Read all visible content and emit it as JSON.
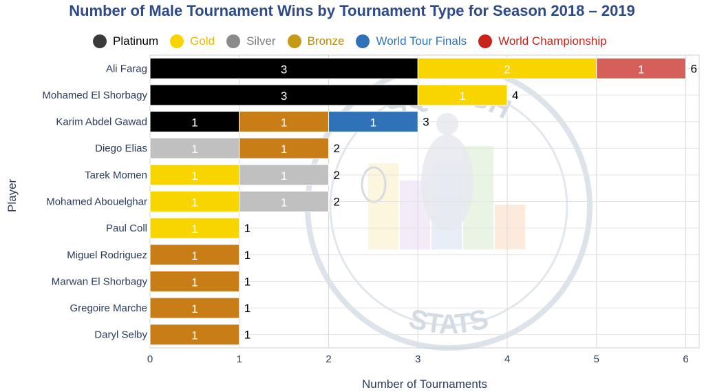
{
  "chart_data": {
    "type": "bar",
    "orientation": "horizontal",
    "stacked": true,
    "title": "Number of Male Tournament Wins by Tournament Type for Season 2018 – 2019",
    "xlabel": "Number of Tournaments",
    "ylabel": "Player",
    "xlim": [
      0,
      6.15
    ],
    "xticks": [
      0,
      1,
      2,
      3,
      4,
      5,
      6
    ],
    "grid": true,
    "legend_position": "top",
    "categories": [
      "Ali Farag",
      "Mohamed El Shorbagy",
      "Karim Abdel Gawad",
      "Diego Elias",
      "Tarek Momen",
      "Mohamed Abouelghar",
      "Paul Coll",
      "Miguel Rodriguez",
      "Marwan El Shorbagy",
      "Gregoire Marche",
      "Daryl Selby"
    ],
    "series": [
      {
        "name": "Platinum",
        "color": "#000000",
        "legend_color": "#3a3a3a",
        "text_color": "#000000",
        "values": [
          3,
          3,
          1,
          0,
          0,
          0,
          0,
          0,
          0,
          0,
          0
        ]
      },
      {
        "name": "Gold",
        "color": "#f9d500",
        "legend_color": "#f9d500",
        "text_color": "#e8b800",
        "values": [
          2,
          1,
          0,
          0,
          1,
          1,
          1,
          0,
          0,
          0,
          0
        ]
      },
      {
        "name": "Silver",
        "color": "#c0c0c0",
        "legend_color": "#8a8a8a",
        "text_color": "#7a7a7a",
        "values": [
          0,
          0,
          0,
          1,
          1,
          1,
          0,
          0,
          0,
          0,
          0
        ]
      },
      {
        "name": "Bronze",
        "color": "#c97d17",
        "legend_color": "#c79a16",
        "text_color": "#b58a10",
        "values": [
          0,
          0,
          1,
          1,
          0,
          0,
          0,
          1,
          1,
          1,
          1
        ]
      },
      {
        "name": "World Tour Finals",
        "color": "#2f72b8",
        "legend_color": "#2f72b8",
        "text_color": "#2f72b8",
        "values": [
          0,
          0,
          1,
          0,
          0,
          0,
          0,
          0,
          0,
          0,
          0
        ]
      },
      {
        "name": "World Championship",
        "color": "#d5605a",
        "legend_color": "#c8241a",
        "text_color": "#c8241a",
        "values": [
          1,
          0,
          0,
          0,
          0,
          0,
          0,
          0,
          0,
          0,
          0
        ]
      }
    ],
    "totals": [
      6,
      4,
      3,
      2,
      2,
      2,
      1,
      1,
      1,
      1,
      1
    ]
  },
  "watermark": {
    "top_text": "SQUASH",
    "bottom_text": "STATS"
  }
}
